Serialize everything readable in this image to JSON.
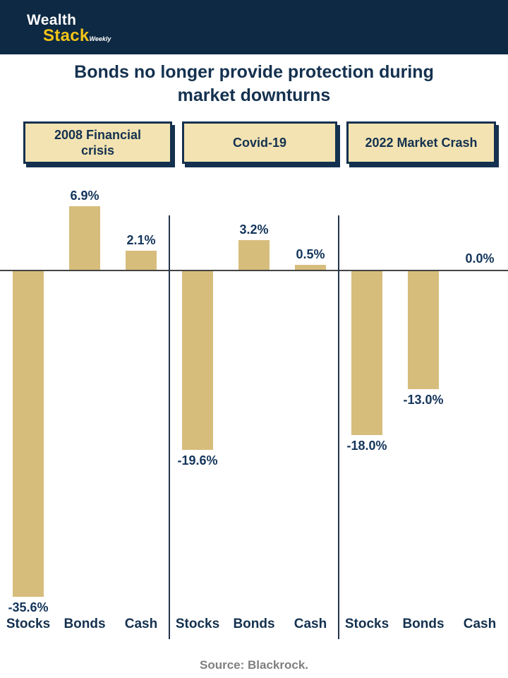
{
  "header": {
    "brand_line1": "Wealth",
    "brand_line2": "Stack",
    "brand_suffix": "Weekly"
  },
  "title_line1": "Bonds no longer provide protection during",
  "title_line2": "market downturns",
  "era_labels": [
    "2008 Financial crisis",
    "Covid-19",
    "2022 Market Crash"
  ],
  "footer": {
    "source": "Source: Blackrock."
  },
  "colors": {
    "header_navy": "#0d2943",
    "text_navy": "#14314f",
    "bar_gold": "#d7bd7c",
    "era_box_fill": "#f3e3b2",
    "logo_yellow": "#f2c419",
    "source_gray": "#7f7f7f",
    "zero_line": "#444444"
  },
  "chart_data": {
    "type": "bar",
    "title": "Bonds no longer provide protection during market downturns",
    "group_labels": [
      "2008 Financial crisis",
      "Covid-19",
      "2022 Market Crash"
    ],
    "categories": [
      "Stocks",
      "Bonds",
      "Cash",
      "Stocks",
      "Bonds",
      "Cash",
      "Stocks",
      "Bonds",
      "Cash"
    ],
    "values": [
      -35.6,
      6.9,
      2.1,
      -19.6,
      3.2,
      0.5,
      -18.0,
      -13.0,
      0.0
    ],
    "data_labels": [
      "-35.6%",
      "6.9%",
      "2.1%",
      "-19.6%",
      "3.2%",
      "0.5%",
      "-18.0%",
      "-13.0%",
      "0.0%"
    ],
    "ylabel": "",
    "xlabel": "",
    "ylim": [
      -38,
      10
    ],
    "grid": false,
    "legend": false,
    "bar_color": "#d7bd7c",
    "source": "Source: Blackrock."
  }
}
